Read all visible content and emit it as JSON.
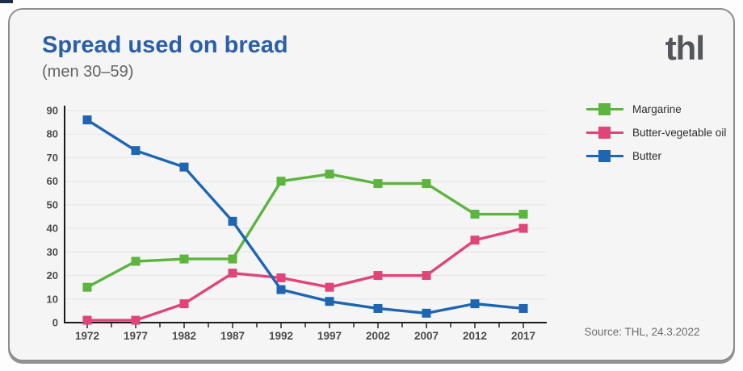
{
  "card": {
    "title": "Spread used on bread",
    "subtitle": "(men 30–59)",
    "logo": "thl",
    "source": "Source: THL, 24.3.2022"
  },
  "colors": {
    "title_blue": "#2b5fa9",
    "margarine_green": "#5cb53e",
    "butter_oil_pink": "#e04579",
    "butter_blue": "#1e66b2",
    "axis": "#1c1c1c",
    "grid": "#e8e8ea",
    "tick_text": "#4c4c4c"
  },
  "chart_data": {
    "type": "line",
    "title": "Spread used on bread (men 30–59), %",
    "categories": [
      "1972",
      "1977",
      "1982",
      "1987",
      "1992",
      "1997",
      "2002",
      "2007",
      "2012",
      "2017"
    ],
    "series": [
      {
        "name": "Margarine",
        "color": "#5cb53e",
        "values": [
          15,
          26,
          27,
          27,
          60,
          63,
          59,
          59,
          46,
          46
        ]
      },
      {
        "name": "Butter-vegetable oil",
        "color": "#e04579",
        "values": [
          1,
          1,
          8,
          21,
          19,
          15,
          20,
          20,
          35,
          40
        ]
      },
      {
        "name": "Butter",
        "color": "#1e66b2",
        "values": [
          86,
          73,
          66,
          43,
          14,
          9,
          6,
          4,
          8,
          6
        ]
      }
    ],
    "xlabel": "",
    "ylabel": "",
    "ylim": [
      0,
      90
    ],
    "ytick_step": 10,
    "grid": "horizontal",
    "legend_position": "right",
    "marker": "square"
  }
}
